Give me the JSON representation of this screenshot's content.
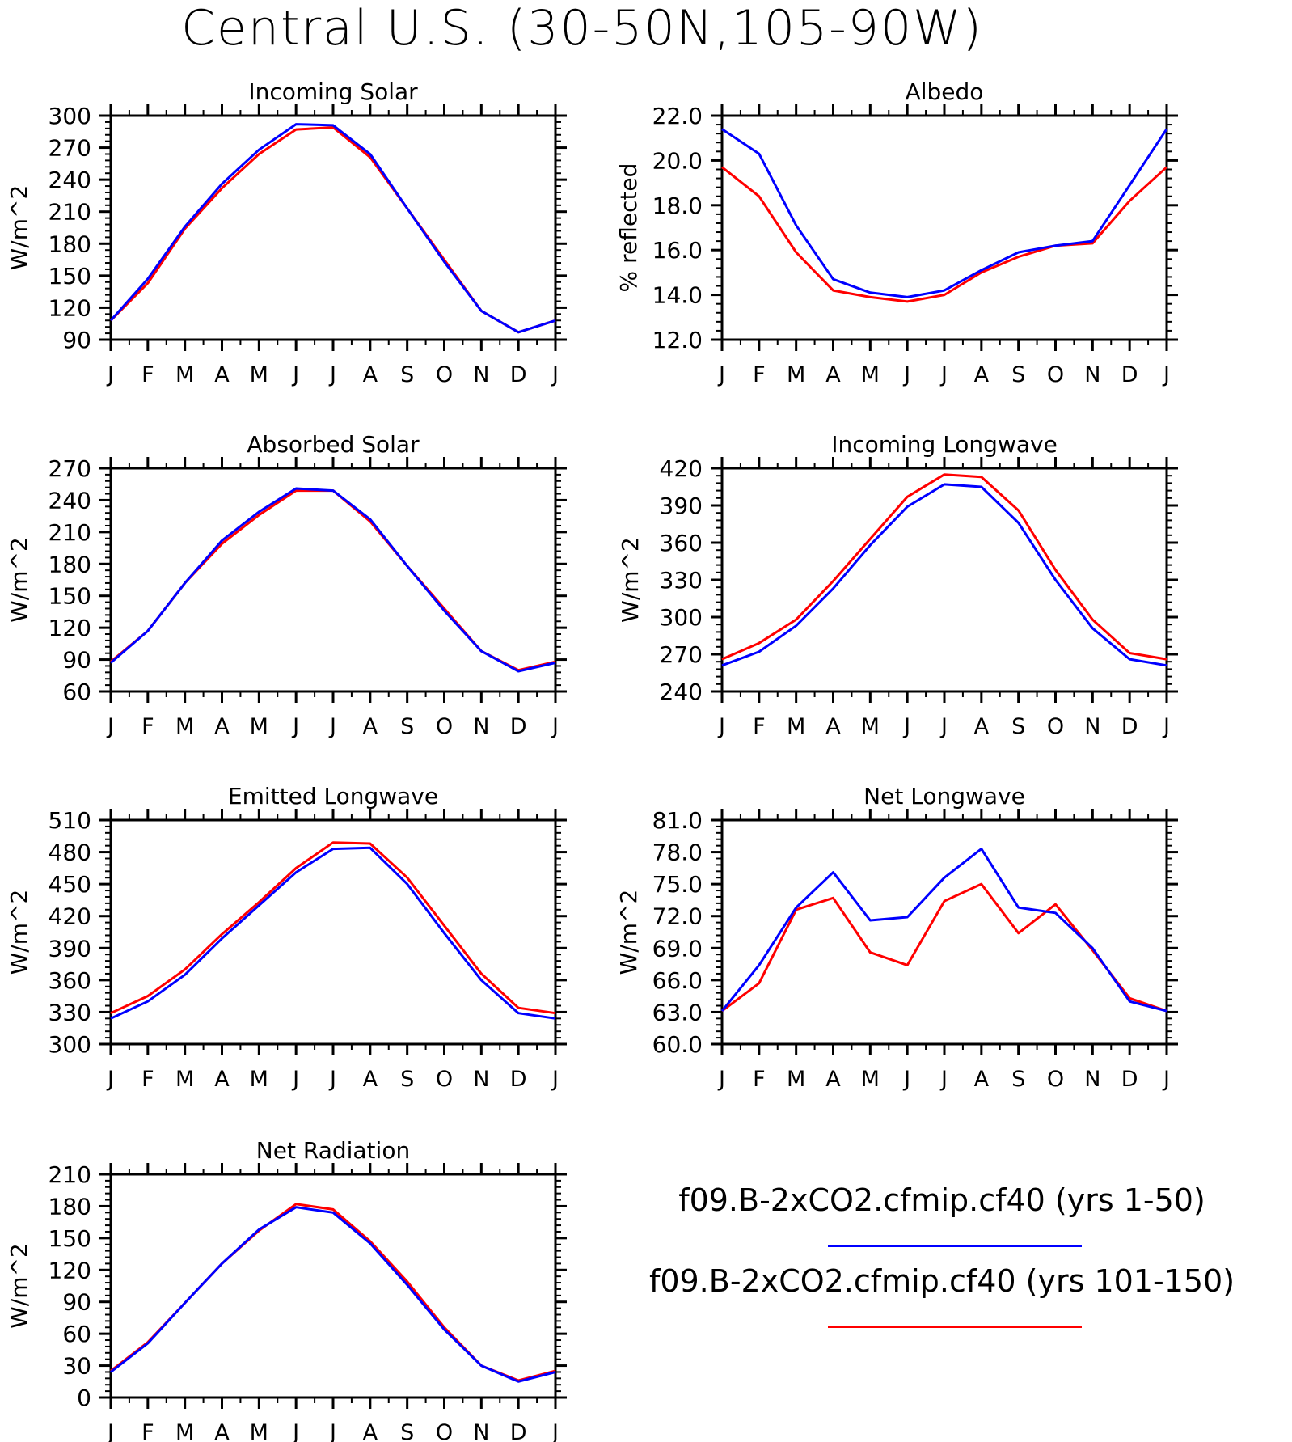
{
  "title": "Central U.S. (30-50N,105-90W)",
  "month_labels": [
    "J",
    "F",
    "M",
    "A",
    "M",
    "J",
    "J",
    "A",
    "S",
    "O",
    "N",
    "D",
    "J"
  ],
  "legend": {
    "entries": [
      {
        "label": "f09.B-2xCO2.cfmip.cf40 (yrs 1-50)",
        "color": "#0000ff"
      },
      {
        "label": "f09.B-2xCO2.cfmip.cf40 (yrs 101-150)",
        "color": "#ff0000"
      }
    ]
  },
  "chart_data": [
    {
      "type": "line",
      "title": "Incoming Solar",
      "ylabel": "W/m^2",
      "ylim": [
        90,
        300
      ],
      "yticks": [
        "90",
        "120",
        "150",
        "180",
        "210",
        "240",
        "270",
        "300"
      ],
      "x": [
        "J",
        "F",
        "M",
        "A",
        "M",
        "J",
        "J",
        "A",
        "S",
        "O",
        "N",
        "D",
        "J"
      ],
      "series": [
        {
          "name": "f09.B-2xCO2.cfmip.cf40 (yrs 1-50)",
          "color": "#0000ff",
          "values": [
            108,
            147,
            196,
            236,
            268,
            292,
            291,
            264,
            213,
            163,
            117,
            97,
            108
          ]
        },
        {
          "name": "f09.B-2xCO2.cfmip.cf40 (yrs 101-150)",
          "color": "#ff0000",
          "values": [
            108,
            143,
            194,
            232,
            264,
            287,
            289,
            261,
            213,
            165,
            117,
            97,
            108
          ]
        }
      ]
    },
    {
      "type": "line",
      "title": "Albedo",
      "ylabel": "% reflected",
      "ylim": [
        12,
        22
      ],
      "yticks": [
        "12.0",
        "14.0",
        "16.0",
        "18.0",
        "20.0",
        "22.0"
      ],
      "x": [
        "J",
        "F",
        "M",
        "A",
        "M",
        "J",
        "J",
        "A",
        "S",
        "O",
        "N",
        "D",
        "J"
      ],
      "series": [
        {
          "name": "f09.B-2xCO2.cfmip.cf40 (yrs 1-50)",
          "color": "#0000ff",
          "values": [
            21.4,
            20.3,
            17.1,
            14.7,
            14.1,
            13.9,
            14.2,
            15.1,
            15.9,
            16.2,
            16.4,
            18.9,
            21.4
          ]
        },
        {
          "name": "f09.B-2xCO2.cfmip.cf40 (yrs 101-150)",
          "color": "#ff0000",
          "values": [
            19.7,
            18.4,
            15.9,
            14.2,
            13.9,
            13.7,
            14.0,
            15.0,
            15.7,
            16.2,
            16.3,
            18.2,
            19.7
          ]
        }
      ]
    },
    {
      "type": "line",
      "title": "Absorbed Solar",
      "ylabel": "W/m^2",
      "ylim": [
        60,
        270
      ],
      "yticks": [
        "60",
        "90",
        "120",
        "150",
        "180",
        "210",
        "240",
        "270"
      ],
      "x": [
        "J",
        "F",
        "M",
        "A",
        "M",
        "J",
        "J",
        "A",
        "S",
        "O",
        "N",
        "D",
        "J"
      ],
      "series": [
        {
          "name": "f09.B-2xCO2.cfmip.cf40 (yrs 1-50)",
          "color": "#0000ff",
          "values": [
            87,
            117,
            162,
            202,
            229,
            251,
            249,
            222,
            178,
            136,
            98,
            79,
            87
          ]
        },
        {
          "name": "f09.B-2xCO2.cfmip.cf40 (yrs 101-150)",
          "color": "#ff0000",
          "values": [
            88,
            117,
            162,
            199,
            226,
            249,
            249,
            220,
            178,
            138,
            98,
            80,
            88
          ]
        }
      ]
    },
    {
      "type": "line",
      "title": "Incoming Longwave",
      "ylabel": "W/m^2",
      "ylim": [
        240,
        420
      ],
      "yticks": [
        "240",
        "270",
        "300",
        "330",
        "360",
        "390",
        "420"
      ],
      "x": [
        "J",
        "F",
        "M",
        "A",
        "M",
        "J",
        "J",
        "A",
        "S",
        "O",
        "N",
        "D",
        "J"
      ],
      "series": [
        {
          "name": "f09.B-2xCO2.cfmip.cf40 (yrs 1-50)",
          "color": "#0000ff",
          "values": [
            261,
            272,
            293,
            323,
            358,
            389,
            407,
            405,
            376,
            330,
            291,
            266,
            261
          ]
        },
        {
          "name": "f09.B-2xCO2.cfmip.cf40 (yrs 101-150)",
          "color": "#ff0000",
          "values": [
            266,
            279,
            298,
            329,
            363,
            397,
            415,
            413,
            386,
            338,
            298,
            271,
            266
          ]
        }
      ]
    },
    {
      "type": "line",
      "title": "Emitted Longwave",
      "ylabel": "W/m^2",
      "ylim": [
        300,
        510
      ],
      "yticks": [
        "300",
        "330",
        "360",
        "390",
        "420",
        "450",
        "480",
        "510"
      ],
      "x": [
        "J",
        "F",
        "M",
        "A",
        "M",
        "J",
        "J",
        "A",
        "S",
        "O",
        "N",
        "D",
        "J"
      ],
      "series": [
        {
          "name": "f09.B-2xCO2.cfmip.cf40 (yrs 1-50)",
          "color": "#0000ff",
          "values": [
            324,
            340,
            365,
            399,
            430,
            461,
            483,
            484,
            450,
            404,
            360,
            329,
            324
          ]
        },
        {
          "name": "f09.B-2xCO2.cfmip.cf40 (yrs 101-150)",
          "color": "#ff0000",
          "values": [
            329,
            345,
            370,
            403,
            433,
            465,
            489,
            488,
            456,
            411,
            366,
            334,
            329
          ]
        }
      ]
    },
    {
      "type": "line",
      "title": "Net Longwave",
      "ylabel": "W/m^2",
      "ylim": [
        60,
        81
      ],
      "yticks": [
        "60.0",
        "63.0",
        "66.0",
        "69.0",
        "72.0",
        "75.0",
        "78.0",
        "81.0"
      ],
      "x": [
        "J",
        "F",
        "M",
        "A",
        "M",
        "J",
        "J",
        "A",
        "S",
        "O",
        "N",
        "D",
        "J"
      ],
      "series": [
        {
          "name": "f09.B-2xCO2.cfmip.cf40 (yrs 1-50)",
          "color": "#0000ff",
          "values": [
            63.1,
            67.4,
            72.8,
            76.1,
            71.6,
            71.9,
            75.6,
            78.3,
            72.8,
            72.3,
            69.0,
            64.0,
            63.1
          ]
        },
        {
          "name": "f09.B-2xCO2.cfmip.cf40 (yrs 101-150)",
          "color": "#ff0000",
          "values": [
            63.1,
            65.7,
            72.6,
            73.7,
            68.6,
            67.4,
            73.4,
            75.0,
            70.4,
            73.1,
            68.8,
            64.3,
            63.1
          ]
        }
      ]
    },
    {
      "type": "line",
      "title": "Net Radiation",
      "ylabel": "W/m^2",
      "ylim": [
        0,
        210
      ],
      "yticks": [
        "0",
        "30",
        "60",
        "90",
        "120",
        "150",
        "180",
        "210"
      ],
      "x": [
        "J",
        "F",
        "M",
        "A",
        "M",
        "J",
        "J",
        "A",
        "S",
        "O",
        "N",
        "D",
        "J"
      ],
      "series": [
        {
          "name": "f09.B-2xCO2.cfmip.cf40 (yrs 1-50)",
          "color": "#0000ff",
          "values": [
            24,
            51,
            89,
            126,
            158,
            179,
            174,
            145,
            106,
            64,
            30,
            15,
            24
          ]
        },
        {
          "name": "f09.B-2xCO2.cfmip.cf40 (yrs 101-150)",
          "color": "#ff0000",
          "values": [
            25,
            52,
            89,
            126,
            157,
            182,
            177,
            147,
            109,
            66,
            30,
            16,
            25
          ]
        }
      ]
    }
  ]
}
